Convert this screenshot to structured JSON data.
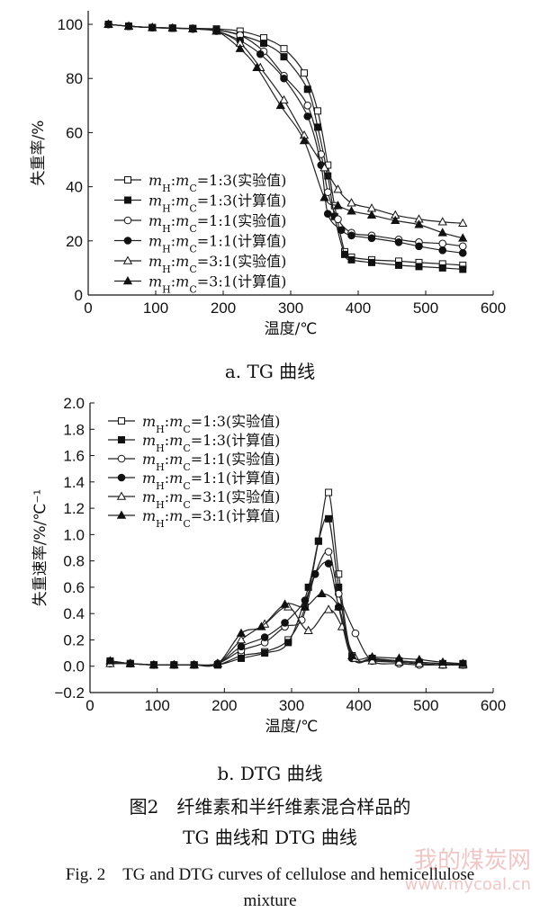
{
  "chart_data": [
    {
      "type": "line",
      "panel_label": "a. TG 曲线",
      "xlabel": "温度/℃",
      "ylabel": "失重率/%",
      "xlim": [
        0,
        600
      ],
      "ylim": [
        0,
        105
      ],
      "xticks": [
        0,
        100,
        200,
        300,
        400,
        500,
        600
      ],
      "yticks": [
        0,
        20,
        40,
        60,
        80,
        100
      ],
      "legend_position": "left-middle",
      "series": [
        {
          "name": "mH:mC=1:3(实验值)",
          "marker": "square-open",
          "points": [
            [
              30,
              100
            ],
            [
              60,
              99.3
            ],
            [
              95,
              98.8
            ],
            [
              125,
              98.6
            ],
            [
              155,
              98.5
            ],
            [
              190,
              98.3
            ],
            [
              225,
              97.5
            ],
            [
              260,
              95
            ],
            [
              290,
              91
            ],
            [
              320,
              82
            ],
            [
              340,
              68
            ],
            [
              355,
              48
            ],
            [
              365,
              33
            ],
            [
              380,
              16
            ],
            [
              390,
              14
            ],
            [
              420,
              13
            ],
            [
              460,
              12.5
            ],
            [
              490,
              12
            ],
            [
              525,
              11.5
            ],
            [
              555,
              11
            ]
          ]
        },
        {
          "name": "mH:mC=1:3(计算值)",
          "marker": "square-filled",
          "points": [
            [
              30,
              100
            ],
            [
              60,
              99.3
            ],
            [
              95,
              98.8
            ],
            [
              125,
              98.6
            ],
            [
              155,
              98.4
            ],
            [
              190,
              98
            ],
            [
              225,
              96
            ],
            [
              260,
              93
            ],
            [
              290,
              88
            ],
            [
              325,
              76
            ],
            [
              340,
              62
            ],
            [
              355,
              44
            ],
            [
              365,
              29
            ],
            [
              380,
              15
            ],
            [
              390,
              13
            ],
            [
              420,
              12
            ],
            [
              460,
              11
            ],
            [
              490,
              10.5
            ],
            [
              525,
              10
            ],
            [
              555,
              9.5
            ]
          ]
        },
        {
          "name": "mH:mC=1:1(实验值)",
          "marker": "circle-open",
          "points": [
            [
              30,
              100
            ],
            [
              60,
              99.3
            ],
            [
              95,
              98.8
            ],
            [
              125,
              98.6
            ],
            [
              155,
              98.3
            ],
            [
              190,
              97.8
            ],
            [
              225,
              96
            ],
            [
              260,
              90
            ],
            [
              290,
              81
            ],
            [
              325,
              70
            ],
            [
              345,
              52
            ],
            [
              355,
              38
            ],
            [
              370,
              28
            ],
            [
              390,
              23
            ],
            [
              420,
              22
            ],
            [
              460,
              20.5
            ],
            [
              490,
              19.5
            ],
            [
              525,
              19
            ],
            [
              555,
              18
            ]
          ]
        },
        {
          "name": "mH:mC=1:1(计算值)",
          "marker": "circle-filled",
          "points": [
            [
              30,
              100
            ],
            [
              60,
              99.3
            ],
            [
              95,
              98.8
            ],
            [
              125,
              98.6
            ],
            [
              155,
              98.3
            ],
            [
              190,
              97.5
            ],
            [
              225,
              94
            ],
            [
              255,
              89
            ],
            [
              290,
              80
            ],
            [
              325,
              66
            ],
            [
              345,
              48
            ],
            [
              355,
              30
            ],
            [
              375,
              24
            ],
            [
              390,
              22
            ],
            [
              420,
              21
            ],
            [
              460,
              19.5
            ],
            [
              490,
              18
            ],
            [
              525,
              16.5
            ],
            [
              555,
              15.5
            ]
          ]
        },
        {
          "name": "mH:mC=3:1(实验值)",
          "marker": "triangle-open",
          "points": [
            [
              30,
              100
            ],
            [
              60,
              99.3
            ],
            [
              95,
              98.8
            ],
            [
              125,
              98.6
            ],
            [
              155,
              98.3
            ],
            [
              190,
              97.5
            ],
            [
              225,
              93
            ],
            [
              255,
              84
            ],
            [
              290,
              72
            ],
            [
              320,
              59
            ],
            [
              350,
              47
            ],
            [
              370,
              39
            ],
            [
              390,
              34
            ],
            [
              420,
              32
            ],
            [
              455,
              29.5
            ],
            [
              490,
              28
            ],
            [
              525,
              27
            ],
            [
              555,
              26.5
            ]
          ]
        },
        {
          "name": "mH:mC=3:1(计算值)",
          "marker": "triangle-filled",
          "points": [
            [
              30,
              100
            ],
            [
              60,
              99.3
            ],
            [
              95,
              98.8
            ],
            [
              125,
              98.6
            ],
            [
              155,
              98.3
            ],
            [
              190,
              97.5
            ],
            [
              225,
              91
            ],
            [
              250,
              84
            ],
            [
              285,
              70
            ],
            [
              320,
              57
            ],
            [
              350,
              36
            ],
            [
              370,
              33
            ],
            [
              390,
              31
            ],
            [
              420,
              29.5
            ],
            [
              455,
              27.5
            ],
            [
              490,
              26
            ],
            [
              525,
              23
            ],
            [
              555,
              21
            ]
          ]
        }
      ]
    },
    {
      "type": "line",
      "panel_label": "b. DTG 曲线",
      "xlabel": "温度/℃",
      "ylabel": "失重速率/%/℃⁻¹",
      "xlim": [
        0,
        600
      ],
      "ylim": [
        -0.2,
        2.0
      ],
      "xticks": [
        0,
        100,
        200,
        300,
        400,
        500,
        600
      ],
      "yticks": [
        -0.2,
        0.0,
        0.2,
        0.4,
        0.6,
        0.8,
        1.0,
        1.2,
        1.4,
        1.6,
        1.8,
        2.0
      ],
      "legend_position": "top-left",
      "series": [
        {
          "name": "mH:mC=1:3(实验值)",
          "marker": "square-open",
          "points": [
            [
              30,
              0.03
            ],
            [
              60,
              0.02
            ],
            [
              95,
              0.01
            ],
            [
              125,
              0.01
            ],
            [
              155,
              0.01
            ],
            [
              190,
              0.01
            ],
            [
              225,
              0.08
            ],
            [
              260,
              0.11
            ],
            [
              295,
              0.2
            ],
            [
              320,
              0.45
            ],
            [
              340,
              0.95
            ],
            [
              355,
              1.32
            ],
            [
              370,
              0.7
            ],
            [
              390,
              0.08
            ],
            [
              420,
              0.05
            ],
            [
              460,
              0.03
            ],
            [
              490,
              0.02
            ],
            [
              525,
              0.01
            ],
            [
              555,
              0.01
            ]
          ]
        },
        {
          "name": "mH:mC=1:3(计算值)",
          "marker": "square-filled",
          "points": [
            [
              30,
              0.04
            ],
            [
              60,
              0.02
            ],
            [
              95,
              0.01
            ],
            [
              125,
              0.01
            ],
            [
              155,
              0.01
            ],
            [
              190,
              0.01
            ],
            [
              225,
              0.06
            ],
            [
              260,
              0.1
            ],
            [
              295,
              0.18
            ],
            [
              325,
              0.6
            ],
            [
              340,
              0.95
            ],
            [
              355,
              1.12
            ],
            [
              370,
              0.6
            ],
            [
              390,
              0.07
            ],
            [
              420,
              0.06
            ],
            [
              460,
              0.04
            ],
            [
              490,
              0.03
            ],
            [
              525,
              0.02
            ],
            [
              555,
              0.02
            ]
          ]
        },
        {
          "name": "mH:mC=1:1(实验值)",
          "marker": "circle-open",
          "points": [
            [
              30,
              0.02
            ],
            [
              60,
              0.02
            ],
            [
              95,
              0.01
            ],
            [
              125,
              0.01
            ],
            [
              155,
              0.01
            ],
            [
              190,
              0.02
            ],
            [
              225,
              0.12
            ],
            [
              260,
              0.18
            ],
            [
              290,
              0.3
            ],
            [
              315,
              0.35
            ],
            [
              335,
              0.7
            ],
            [
              355,
              0.87
            ],
            [
              370,
              0.55
            ],
            [
              395,
              0.25
            ],
            [
              420,
              0.04
            ],
            [
              460,
              0.02
            ],
            [
              490,
              0.01
            ],
            [
              525,
              0.01
            ],
            [
              555,
              0.01
            ]
          ]
        },
        {
          "name": "mH:mC=1:1(计算值)",
          "marker": "circle-filled",
          "points": [
            [
              30,
              0.04
            ],
            [
              60,
              0.02
            ],
            [
              95,
              0.01
            ],
            [
              125,
              0.01
            ],
            [
              155,
              0.01
            ],
            [
              190,
              0.02
            ],
            [
              225,
              0.15
            ],
            [
              260,
              0.22
            ],
            [
              290,
              0.33
            ],
            [
              320,
              0.5
            ],
            [
              335,
              0.7
            ],
            [
              355,
              0.78
            ],
            [
              370,
              0.45
            ],
            [
              390,
              0.06
            ],
            [
              420,
              0.05
            ],
            [
              460,
              0.04
            ],
            [
              490,
              0.03
            ],
            [
              525,
              0.02
            ],
            [
              555,
              0.01
            ]
          ]
        },
        {
          "name": "mH:mC=3:1(实验值)",
          "marker": "triangle-open",
          "points": [
            [
              30,
              0.02
            ],
            [
              60,
              0.02
            ],
            [
              95,
              0.01
            ],
            [
              125,
              0.01
            ],
            [
              155,
              0.01
            ],
            [
              190,
              0.02
            ],
            [
              225,
              0.2
            ],
            [
              260,
              0.32
            ],
            [
              295,
              0.45
            ],
            [
              325,
              0.27
            ],
            [
              355,
              0.43
            ],
            [
              375,
              0.3
            ],
            [
              395,
              0.06
            ],
            [
              420,
              0.04
            ],
            [
              460,
              0.03
            ],
            [
              490,
              0.02
            ],
            [
              525,
              0.01
            ],
            [
              555,
              0.01
            ]
          ]
        },
        {
          "name": "mH:mC=3:1(计算值)",
          "marker": "triangle-filled",
          "points": [
            [
              30,
              0.04
            ],
            [
              60,
              0.02
            ],
            [
              95,
              0.01
            ],
            [
              125,
              0.01
            ],
            [
              155,
              0.01
            ],
            [
              190,
              0.02
            ],
            [
              225,
              0.25
            ],
            [
              255,
              0.3
            ],
            [
              290,
              0.47
            ],
            [
              320,
              0.45
            ],
            [
              345,
              0.55
            ],
            [
              370,
              0.45
            ],
            [
              390,
              0.08
            ],
            [
              420,
              0.07
            ],
            [
              460,
              0.06
            ],
            [
              490,
              0.05
            ],
            [
              525,
              0.03
            ],
            [
              555,
              0.02
            ]
          ]
        }
      ]
    }
  ],
  "captions": {
    "panel_a": "a. TG 曲线",
    "panel_b": "b. DTG 曲线",
    "figure_cn_line1": "图2　纤维素和半纤维素混合样品的",
    "figure_cn_line2": "TG 曲线和 DTG 曲线",
    "figure_en_line1": "Fig. 2　TG and DTG curves of cellulose and hemicellulose",
    "figure_en_line2": "mixture"
  },
  "watermark": {
    "name": "我的煤炭网",
    "url": "www.mycoal.cn"
  }
}
